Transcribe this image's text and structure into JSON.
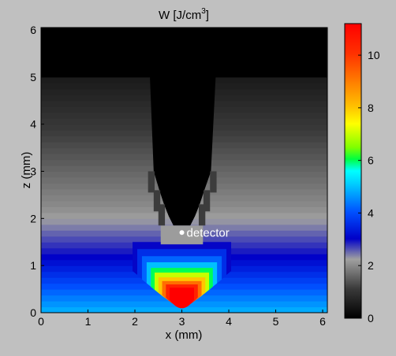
{
  "chart_data": {
    "type": "heatmap",
    "title": "W [J/cm3]",
    "title_main": "W [J/cm",
    "title_sup": "3",
    "title_end": "]",
    "xlabel": "x (mm)",
    "ylabel": "z (mm)",
    "xlim": [
      0,
      6.1
    ],
    "ylim": [
      0,
      6.05
    ],
    "xticks": [
      0,
      1,
      2,
      3,
      4,
      5,
      6
    ],
    "yticks": [
      0,
      1,
      2,
      3,
      4,
      5,
      6
    ],
    "colorbar": {
      "min": 0,
      "max": 11.2,
      "ticks": [
        0,
        2,
        4,
        6,
        8,
        10
      ],
      "colormap": "jet"
    },
    "annotation": {
      "label": "detector",
      "x": 3.0,
      "z": 1.7
    },
    "field_notes": [
      "Black region (W = 0) for z > 5 mm across full width",
      "Black inverted-T channel centered at x = 3 mm, width about 1.4 mm, tapering down to z = 1.8 mm",
      "Gray layered background whose value rises as z decreases",
      "High-energy bowl below the detector reaching about 11 J/cm3 near z = 0.3 mm"
    ]
  }
}
